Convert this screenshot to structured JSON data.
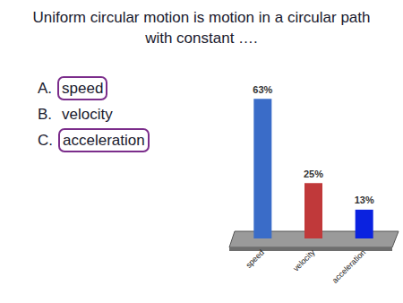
{
  "slide": {
    "question": "Uniform circular motion is motion in a circular path with constant ….",
    "choices": [
      {
        "letter": "A.",
        "text": "speed",
        "circled": true
      },
      {
        "letter": "B.",
        "text": "velocity",
        "circled": false
      },
      {
        "letter": "C.",
        "text": "acceleration",
        "circled": true
      }
    ]
  },
  "chart_data": {
    "type": "bar",
    "categories": [
      "speed",
      "velocity",
      "acceleration"
    ],
    "values": [
      63,
      25,
      13
    ],
    "value_labels": [
      "63%",
      "25%",
      "13%"
    ],
    "colors": [
      "#3a6cc8",
      "#c0393a",
      "#0a22e0"
    ],
    "ylim": [
      0,
      70
    ],
    "data_labels": true,
    "tick_labels": "x",
    "grid": false
  }
}
